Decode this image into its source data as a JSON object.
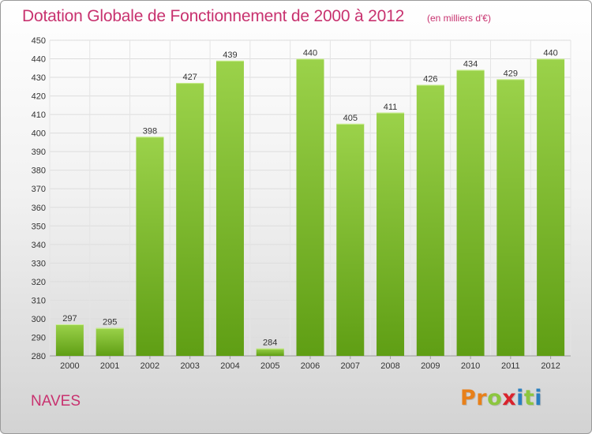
{
  "header": {
    "title": "Dotation Globale de Fonctionnement de 2000 à 2012",
    "subtitle": "(en milliers d'€)"
  },
  "footer": {
    "commune": "NAVES",
    "brand": [
      "P",
      "r",
      "o",
      "x",
      "i",
      "t",
      "i"
    ]
  },
  "colors": {
    "title": "#c8326f",
    "bar_top": "#9bd24a",
    "bar_bottom": "#5f9e14",
    "brand": [
      "#e8801a",
      "#e8801a",
      "#8cc63f",
      "#d9232d",
      "#2a7fc0",
      "#8cc63f",
      "#2a7fc0"
    ]
  },
  "chart_data": {
    "type": "bar",
    "categories": [
      "2000",
      "2001",
      "2002",
      "2003",
      "2004",
      "2005",
      "2006",
      "2007",
      "2008",
      "2009",
      "2010",
      "2011",
      "2012"
    ],
    "values": [
      297,
      295,
      398,
      427,
      439,
      284,
      440,
      405,
      411,
      426,
      434,
      429,
      440
    ],
    "ylim": [
      280,
      450
    ],
    "yticks": [
      280,
      290,
      300,
      310,
      320,
      330,
      340,
      350,
      360,
      370,
      380,
      390,
      400,
      410,
      420,
      430,
      440,
      450
    ],
    "grid": true,
    "legend": "none"
  }
}
